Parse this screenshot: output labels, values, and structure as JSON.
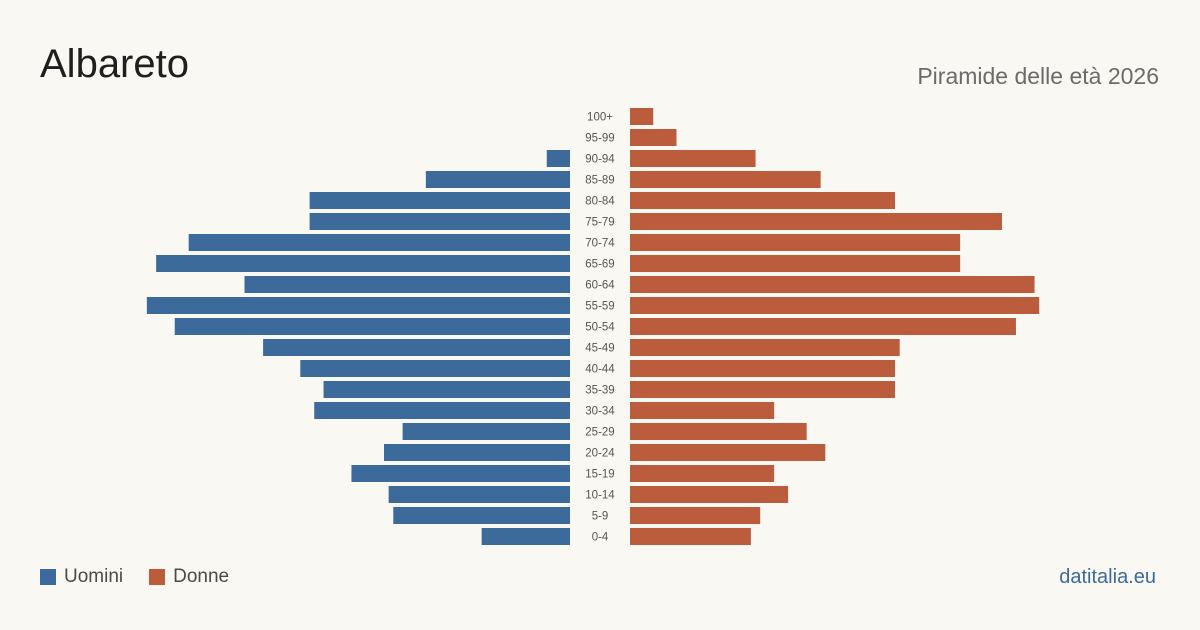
{
  "header": {
    "title": "Albareto",
    "subtitle": "Piramide delle età 2026"
  },
  "legend": {
    "men_label": "Uomini",
    "women_label": "Donne"
  },
  "footer": {
    "brand": "datitalia.eu"
  },
  "colors": {
    "men": "#3b6a9b",
    "women": "#bb5d3c",
    "tick_label": "#555555"
  },
  "chart_data": {
    "type": "bar",
    "orientation": "horizontal-pyramid",
    "categories": [
      "100+",
      "95-99",
      "90-94",
      "85-89",
      "80-84",
      "75-79",
      "70-74",
      "65-69",
      "60-64",
      "55-59",
      "50-54",
      "45-49",
      "40-44",
      "35-39",
      "30-34",
      "25-29",
      "20-24",
      "15-19",
      "10-14",
      "5-9",
      "0-4"
    ],
    "series": [
      {
        "name": "Uomini",
        "side": "left",
        "values": [
          0,
          0,
          5,
          31,
          56,
          56,
          82,
          89,
          70,
          91,
          85,
          66,
          58,
          53,
          55,
          36,
          40,
          47,
          39,
          38,
          19
        ]
      },
      {
        "name": "Donne",
        "side": "right",
        "values": [
          5,
          10,
          27,
          41,
          57,
          80,
          71,
          71,
          87,
          88,
          83,
          58,
          57,
          57,
          31,
          38,
          42,
          31,
          34,
          28,
          26
        ]
      }
    ],
    "xlim": [
      0,
      100
    ]
  }
}
